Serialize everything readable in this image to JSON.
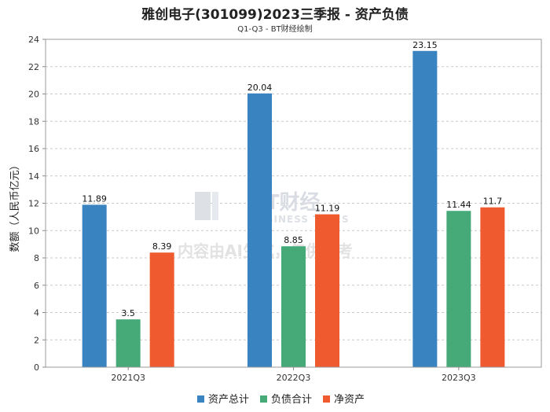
{
  "header": {
    "title": "雅创电子(301099)2023三季报 - 资产负债",
    "subtitle": "Q1-Q3 - BT财经绘制"
  },
  "watermark": {
    "brand": "BT财经",
    "brand_en": "BUSINESS TIMES",
    "notice": "内容由AI生成，仅供参考"
  },
  "chart_data": {
    "type": "bar",
    "title": "雅创电子(301099)2023三季报 - 资产负债",
    "subtitle": "Q1-Q3 - BT财经绘制",
    "xlabel": "",
    "ylabel": "数额（人民币亿元）",
    "ylim": [
      0,
      24
    ],
    "yticks": [
      0,
      2,
      4,
      6,
      8,
      10,
      12,
      14,
      16,
      18,
      20,
      22,
      24
    ],
    "grid": true,
    "legend_position": "bottom-center",
    "categories": [
      "2021Q3",
      "2022Q3",
      "2023Q3"
    ],
    "series": [
      {
        "name": "资产总计",
        "color": "#3a83c1",
        "values": [
          11.89,
          20.04,
          23.15
        ],
        "labels": [
          "11.89",
          "20.04",
          "23.15"
        ]
      },
      {
        "name": "负债合计",
        "color": "#46aa78",
        "values": [
          3.5,
          8.85,
          11.44
        ],
        "labels": [
          "3.5",
          "8.85",
          "11.44"
        ]
      },
      {
        "name": "净资产",
        "color": "#ef5b2f",
        "values": [
          8.39,
          11.19,
          11.7
        ],
        "labels": [
          "8.39",
          "11.19",
          "11.7"
        ]
      }
    ]
  }
}
